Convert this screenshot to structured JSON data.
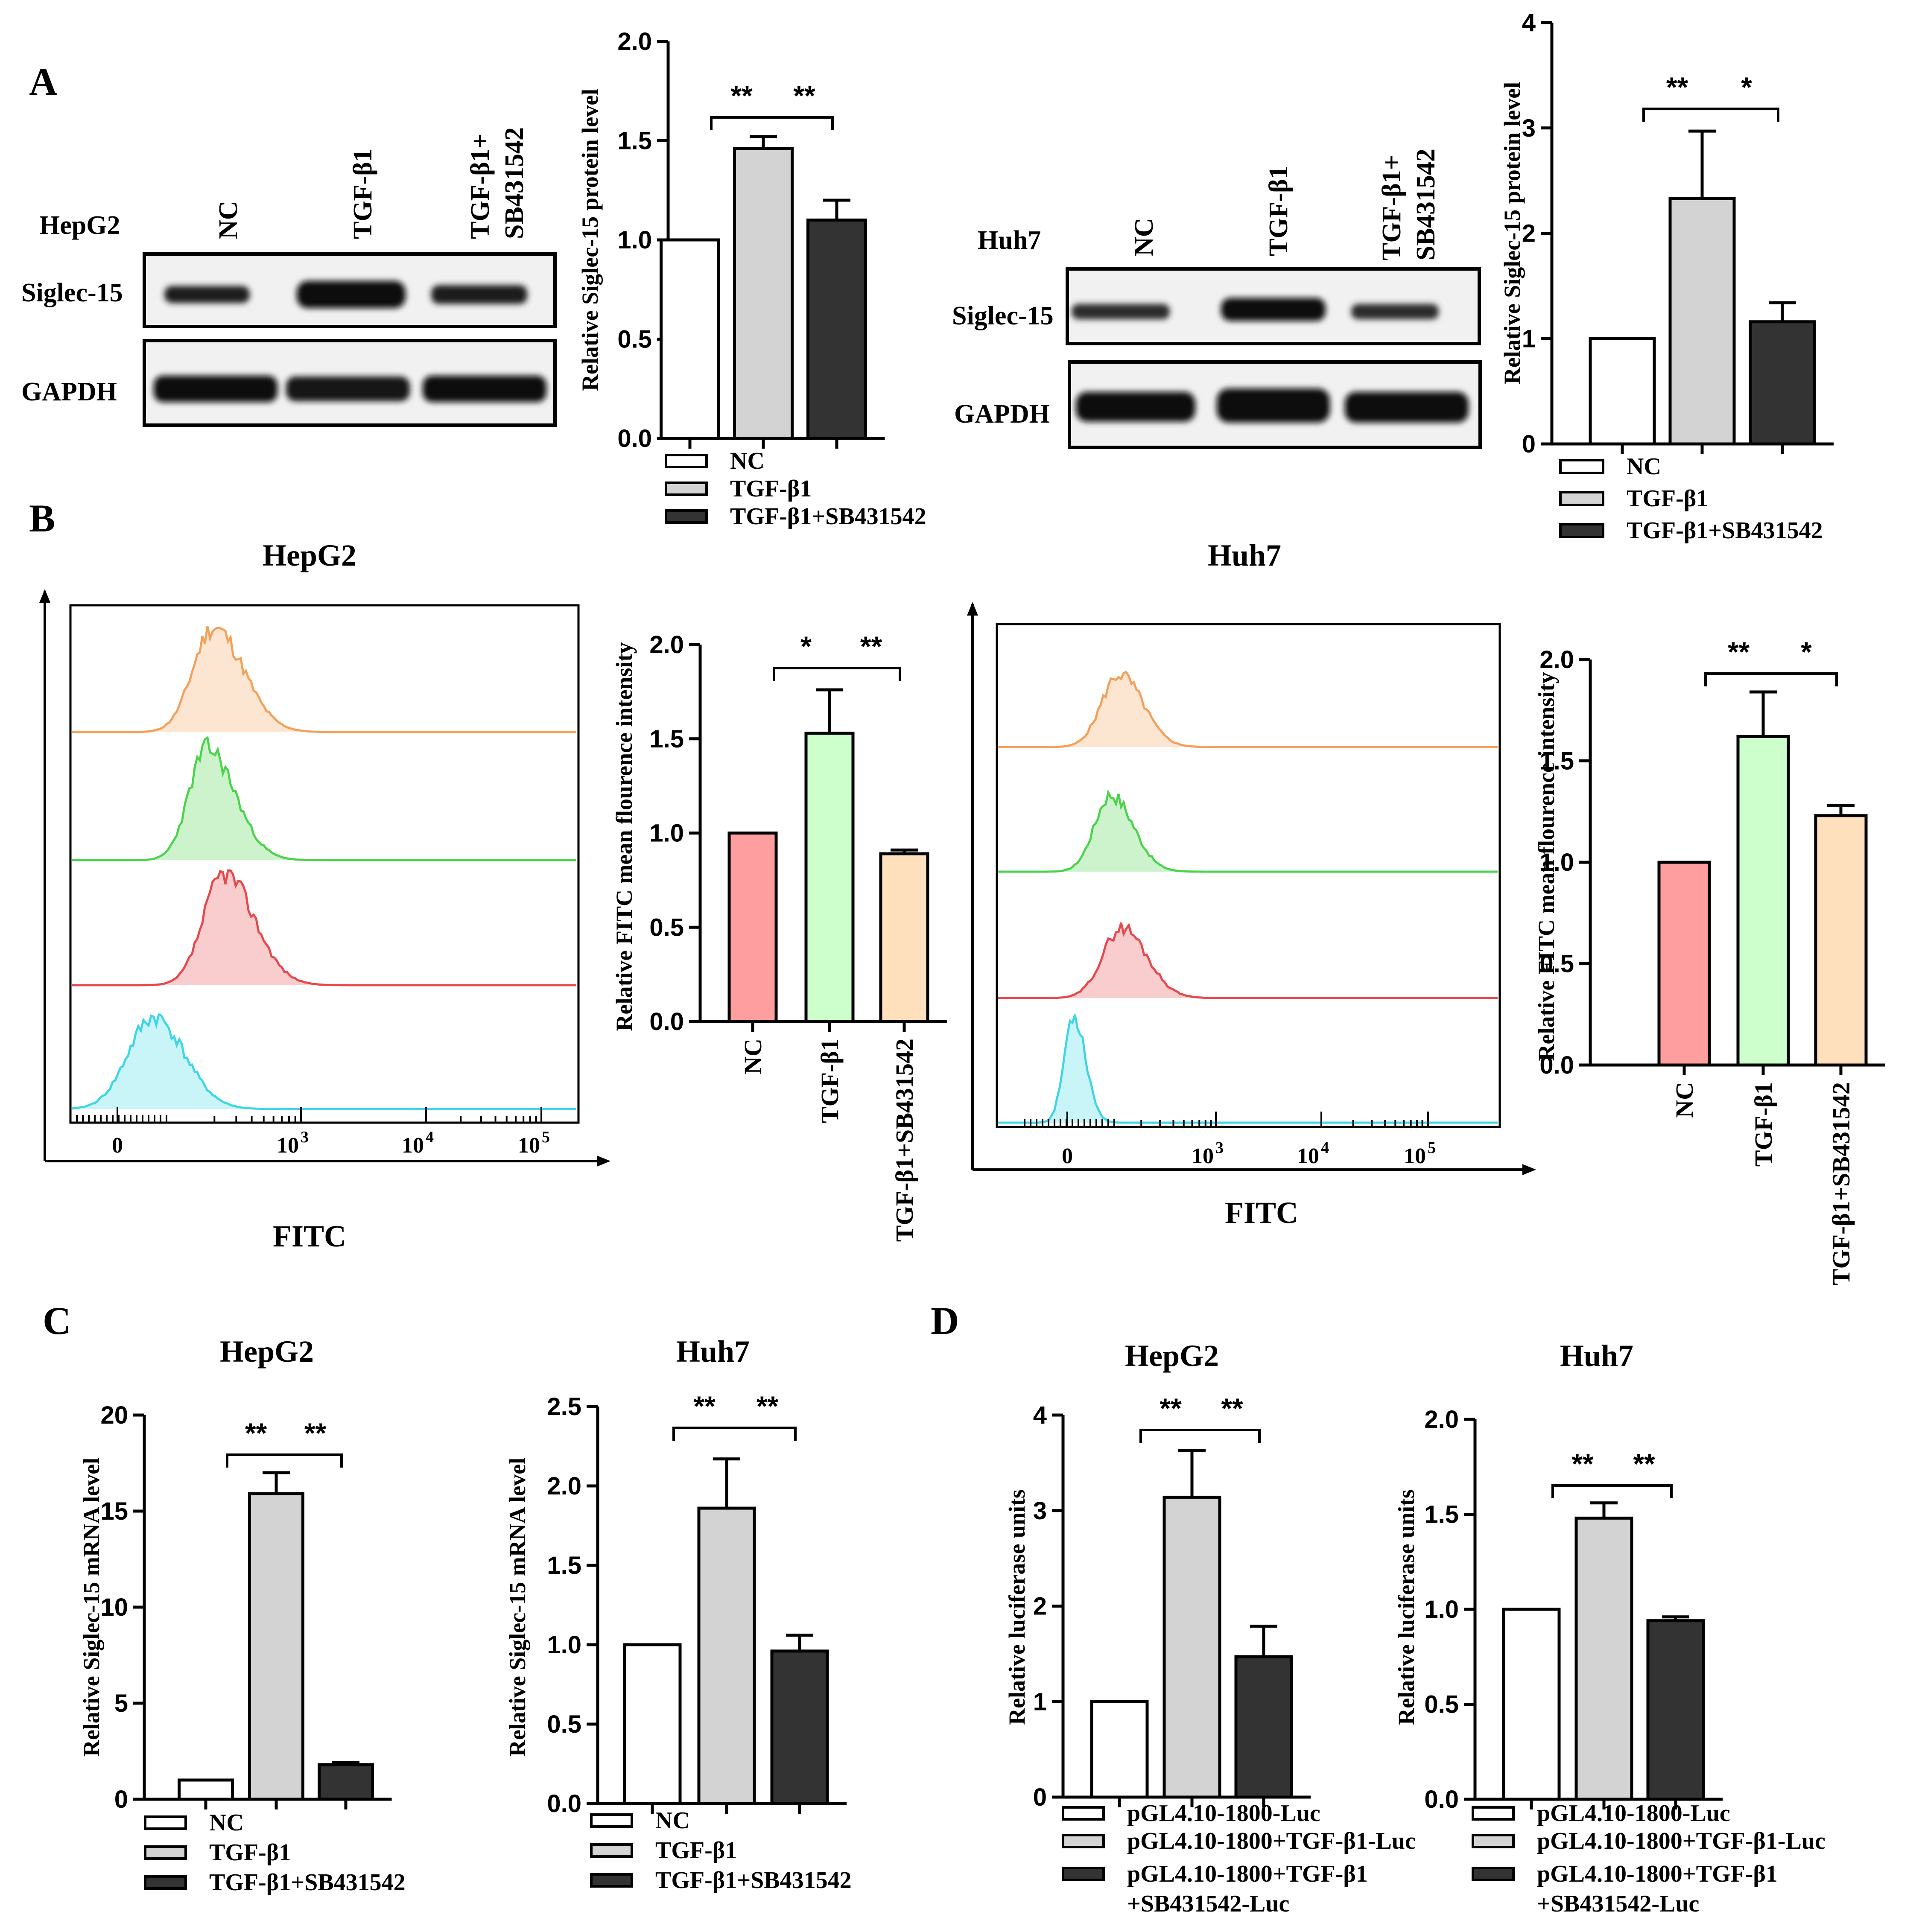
{
  "colors": {
    "nc_white": "#ffffff",
    "tgf_gray": "#d3d3d3",
    "sb_dark": "#333333",
    "fitc_nc": "#ff9e9e",
    "fitc_tgf": "#ccffcc",
    "fitc_sb": "#ffe0bd",
    "hist_orange": "#f5a05a",
    "hist_green": "#4cd34c",
    "hist_red": "#e8474c",
    "hist_cyan": "#3ed6e6"
  },
  "panels": {
    "A": "A",
    "B": "B",
    "C": "C",
    "D": "D"
  },
  "blots": {
    "hepg2": {
      "cell": "HepG2",
      "lanes": [
        "NC",
        "TGF-β1",
        "TGF-β1+",
        "SB431542"
      ],
      "rows": [
        "Siglec-15",
        "GAPDH"
      ]
    },
    "huh7": {
      "cell": "Huh7",
      "lanes": [
        "NC",
        "TGF-β1",
        "TGF-β1+",
        "SB431542"
      ],
      "rows": [
        "Siglec-15",
        "GAPDH"
      ]
    }
  },
  "flow": {
    "hepg2": {
      "title": "HepG2",
      "xlabel": "FITC",
      "ticks": [
        "0",
        "10",
        "3",
        "10",
        "4",
        "10",
        "5"
      ]
    },
    "huh7": {
      "title": "Huh7",
      "xlabel": "FITC",
      "ticks": [
        "0",
        "10",
        "3",
        "10",
        "4",
        "10",
        "5"
      ]
    }
  },
  "chart_data": [
    {
      "id": "a_hepg2",
      "type": "bar",
      "ylabel": "Relative Siglec-15  protein level",
      "ylim": [
        0,
        2.0
      ],
      "ticks": [
        "0.0",
        "0.5",
        "1.0",
        "1.5",
        "2.0"
      ],
      "categories": [
        "NC",
        "TGF-β1",
        "TGF-β1+SB431542"
      ],
      "values": [
        1.0,
        1.46,
        1.1
      ],
      "errors": [
        0,
        0.06,
        0.1
      ],
      "significance": [
        "**",
        "**"
      ],
      "legend": [
        "NC",
        "TGF-β1",
        "TGF-β1+SB431542"
      ]
    },
    {
      "id": "a_huh7",
      "type": "bar",
      "ylabel": "Relative Siglec-15  protein level",
      "ylim": [
        0,
        4
      ],
      "ticks": [
        "0",
        "1",
        "2",
        "3",
        "4"
      ],
      "categories": [
        "NC",
        "TGF-β1",
        "TGF-β1+SB431542"
      ],
      "values": [
        1.0,
        2.33,
        1.16
      ],
      "errors": [
        0,
        0.64,
        0.18
      ],
      "significance": [
        "**",
        "*"
      ],
      "legend": [
        "NC",
        "TGF-β1",
        "TGF-β1+SB431542"
      ]
    },
    {
      "id": "b_hepg2",
      "type": "bar",
      "ylabel": "Relative FITC mean flourence intensity",
      "ylim": [
        0,
        2.0
      ],
      "ticks": [
        "0.0",
        "0.5",
        "1.0",
        "1.5",
        "2.0"
      ],
      "categories": [
        "NC",
        "TGF-β1",
        "TGF-β1+SB431542"
      ],
      "values": [
        1.0,
        1.53,
        0.89
      ],
      "errors": [
        0,
        0.23,
        0.02
      ],
      "significance": [
        "*",
        "**"
      ]
    },
    {
      "id": "b_huh7",
      "type": "bar",
      "ylabel": "Relative FITC mean flourence intensity",
      "ylim": [
        0,
        2.0
      ],
      "ticks": [
        "0.0",
        "0.5",
        "1.0",
        "1.5",
        "2.0"
      ],
      "categories": [
        "NC",
        "TGF-β1",
        "TGF-β1+SB431542"
      ],
      "values": [
        1.0,
        1.62,
        1.23
      ],
      "errors": [
        0,
        0.22,
        0.05
      ],
      "significance": [
        "**",
        "*"
      ]
    },
    {
      "id": "c_hepg2",
      "type": "bar",
      "title": "HepG2",
      "ylabel": "Relative Siglec-15 mRNA level",
      "ylim": [
        0,
        20
      ],
      "ticks": [
        "0",
        "5",
        "10",
        "15",
        "20"
      ],
      "categories": [
        "NC",
        "TGF-β1",
        "TGF-β1+SB431542"
      ],
      "values": [
        1.0,
        15.9,
        1.8
      ],
      "errors": [
        0,
        1.1,
        0.1
      ],
      "significance": [
        "**",
        "**"
      ],
      "legend": [
        "NC",
        "TGF-β1",
        "TGF-β1+SB431542"
      ]
    },
    {
      "id": "c_huh7",
      "type": "bar",
      "title": "Huh7",
      "ylabel": "Relative Siglec-15 mRNA level",
      "ylim": [
        0,
        2.5
      ],
      "ticks": [
        "0.0",
        "0.5",
        "1.0",
        "1.5",
        "2.0",
        "2.5"
      ],
      "categories": [
        "NC",
        "TGF-β1",
        "TGF-β1+SB431542"
      ],
      "values": [
        1.0,
        1.86,
        0.96
      ],
      "errors": [
        0,
        0.31,
        0.1
      ],
      "significance": [
        "**",
        "**"
      ],
      "legend": [
        "NC",
        "TGF-β1",
        "TGF-β1+SB431542"
      ]
    },
    {
      "id": "d_hepg2",
      "type": "bar",
      "title": "HepG2",
      "ylabel": "Relative luciferase units",
      "ylim": [
        0,
        4
      ],
      "ticks": [
        "0",
        "1",
        "2",
        "3",
        "4"
      ],
      "categories": [
        "pGL4.10-1800-Luc",
        "pGL4.10-1800+TGF-β1-Luc",
        "pGL4.10-1800+TGF-β1 +SB431542-Luc"
      ],
      "values": [
        1.0,
        3.14,
        1.47
      ],
      "errors": [
        0,
        0.49,
        0.32
      ],
      "significance": [
        "**",
        "**"
      ],
      "legend": [
        "pGL4.10-1800-Luc",
        "pGL4.10-1800+TGF-β1-Luc",
        "pGL4.10-1800+TGF-β1",
        "+SB431542-Luc"
      ]
    },
    {
      "id": "d_huh7",
      "type": "bar",
      "title": "Huh7",
      "ylabel": "Relative luciferase units",
      "ylim": [
        0,
        2.0
      ],
      "ticks": [
        "0.0",
        "0.5",
        "1.0",
        "1.5",
        "2.0"
      ],
      "categories": [
        "pGL4.10-1800-Luc",
        "pGL4.10-1800+TGF-β1-Luc",
        "pGL4.10-1800+TGF-β1 +SB431542-Luc"
      ],
      "values": [
        1.0,
        1.48,
        0.94
      ],
      "errors": [
        0,
        0.08,
        0.02
      ],
      "significance": [
        "**",
        "**"
      ],
      "legend": [
        "pGL4.10-1800-Luc",
        "pGL4.10-1800+TGF-β1-Luc",
        "pGL4.10-1800+TGF-β1",
        "+SB431542-Luc"
      ]
    }
  ]
}
